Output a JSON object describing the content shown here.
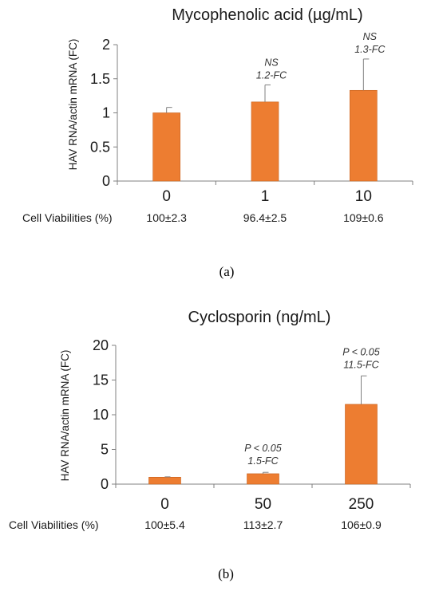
{
  "colors": {
    "bar": "#ED7D31",
    "bar_edge": "#C65F1A",
    "axis": "#808080",
    "error": "#808080"
  },
  "chart_data": [
    {
      "type": "bar",
      "panel_label": "(a)",
      "title": "Mycophenolic acid (µg/mL)",
      "ylabel": "HAV RNA/actin mRNA (FC)",
      "xlabel": "",
      "ylim": [
        0,
        2
      ],
      "yticks": [
        "0",
        "0.5",
        "1",
        "1.5",
        "2"
      ],
      "ytick_values": [
        0,
        0.5,
        1,
        1.5,
        2
      ],
      "categories": [
        "0",
        "1",
        "10"
      ],
      "values": [
        1.0,
        1.16,
        1.33
      ],
      "errors": [
        0.08,
        0.25,
        0.46
      ],
      "annotations": [
        {
          "line1": "",
          "line2": ""
        },
        {
          "line1": "NS",
          "line2": "1.2-FC"
        },
        {
          "line1": "NS",
          "line2": "1.3-FC"
        }
      ],
      "viability_label": "Cell Viabilities (%)",
      "viabilities": [
        "100±2.3",
        "96.4±2.5",
        "109±0.6"
      ],
      "grid": false
    },
    {
      "type": "bar",
      "panel_label": "(b)",
      "title": "Cyclosporin (ng/mL)",
      "ylabel": "HAV RNA/actin mRNA (FC)",
      "xlabel": "",
      "ylim": [
        0,
        20
      ],
      "yticks": [
        "0",
        "5",
        "10",
        "15",
        "20"
      ],
      "ytick_values": [
        0,
        5,
        10,
        15,
        20
      ],
      "categories": [
        "0",
        "50",
        "250"
      ],
      "values": [
        1.0,
        1.5,
        11.5
      ],
      "errors": [
        0.05,
        0.2,
        4.1
      ],
      "annotations": [
        {
          "line1": "",
          "line2": ""
        },
        {
          "line1": "P < 0.05",
          "line2": "1.5-FC"
        },
        {
          "line1": "P < 0.05",
          "line2": "11.5-FC"
        }
      ],
      "viability_label": "Cell Viabilities (%)",
      "viabilities": [
        "100±5.4",
        "113±2.7",
        "106±0.9"
      ],
      "grid": false
    }
  ]
}
